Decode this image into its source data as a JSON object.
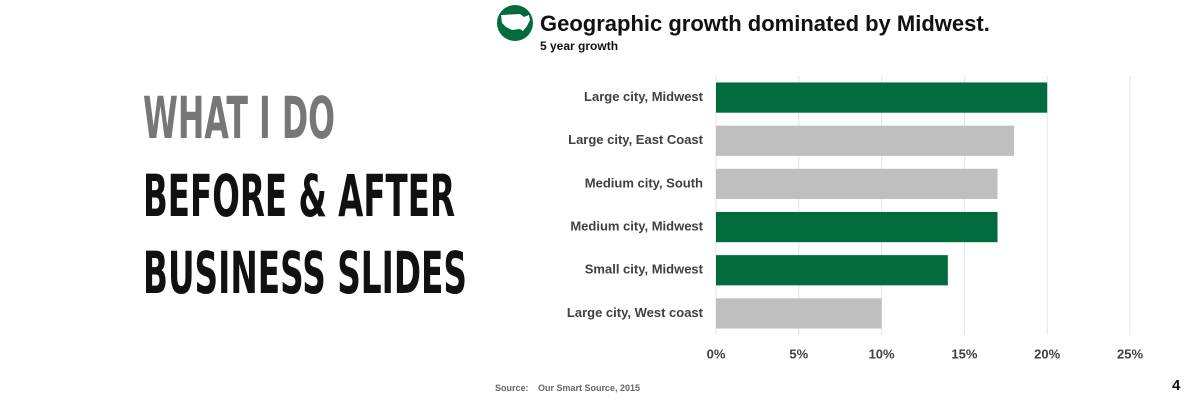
{
  "slide": {
    "heading": "WHAT I DO",
    "line1": "BEFORE & AFTER",
    "line2": "BUSINESS SLIDES",
    "source_label": "Source:",
    "source": "Our Smart Source, 2015",
    "page_number": "4"
  },
  "chart_data": {
    "type": "bar",
    "orientation": "horizontal",
    "title": "Geographic growth dominated by Midwest.",
    "subtitle": "5 year growth",
    "categories": [
      "Large city, Midwest",
      "Large city, East Coast",
      "Medium city, South",
      "Medium city, Midwest",
      "Small city, Midwest",
      "Large city, West coast"
    ],
    "values": [
      20,
      18,
      17,
      17,
      14,
      10
    ],
    "colors": [
      "#006b3c",
      "#bfbfbf",
      "#bfbfbf",
      "#006b3c",
      "#006b3c",
      "#bfbfbf"
    ],
    "xlim": [
      0,
      25
    ],
    "xticks": [
      {
        "value": 0,
        "label": "0%"
      },
      {
        "value": 5,
        "label": "5%"
      },
      {
        "value": 10,
        "label": "10%"
      },
      {
        "value": 15,
        "label": "15%"
      },
      {
        "value": 20,
        "label": "20%"
      },
      {
        "value": 25,
        "label": "25%"
      }
    ],
    "grid": true
  }
}
